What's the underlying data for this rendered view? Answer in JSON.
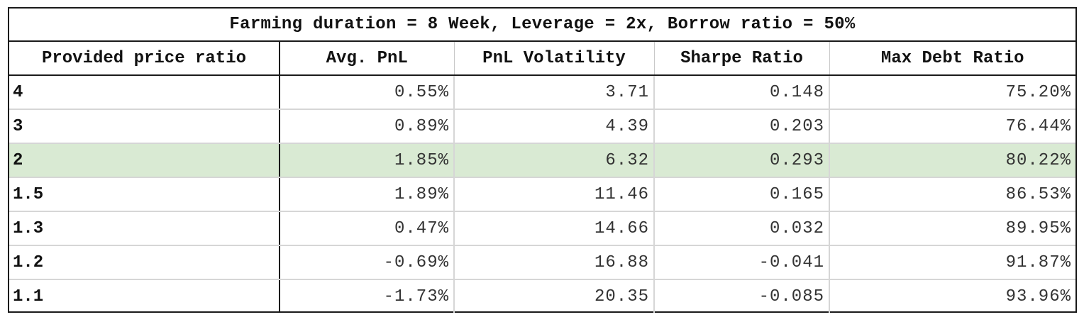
{
  "table": {
    "title": "Farming duration = 8 Week, Leverage = 2x, Borrow ratio = 50%",
    "columns": [
      "Provided price ratio",
      "Avg. PnL",
      "PnL Volatility",
      "Sharpe Ratio",
      "Max Debt Ratio"
    ],
    "highlight_color": "#d9ead3",
    "rows": [
      {
        "ratio": "4",
        "avg_pnl": "0.55%",
        "volatility": "3.71",
        "sharpe": "0.148",
        "max_debt": "75.20%",
        "highlighted": false
      },
      {
        "ratio": "3",
        "avg_pnl": "0.89%",
        "volatility": "4.39",
        "sharpe": "0.203",
        "max_debt": "76.44%",
        "highlighted": false
      },
      {
        "ratio": "2",
        "avg_pnl": "1.85%",
        "volatility": "6.32",
        "sharpe": "0.293",
        "max_debt": "80.22%",
        "highlighted": true
      },
      {
        "ratio": "1.5",
        "avg_pnl": "1.89%",
        "volatility": "11.46",
        "sharpe": "0.165",
        "max_debt": "86.53%",
        "highlighted": false
      },
      {
        "ratio": "1.3",
        "avg_pnl": "0.47%",
        "volatility": "14.66",
        "sharpe": "0.032",
        "max_debt": "89.95%",
        "highlighted": false
      },
      {
        "ratio": "1.2",
        "avg_pnl": "-0.69%",
        "volatility": "16.88",
        "sharpe": "-0.041",
        "max_debt": "91.87%",
        "highlighted": false
      },
      {
        "ratio": "1.1",
        "avg_pnl": "-1.73%",
        "volatility": "20.35",
        "sharpe": "-0.085",
        "max_debt": "93.96%",
        "highlighted": false
      }
    ]
  }
}
